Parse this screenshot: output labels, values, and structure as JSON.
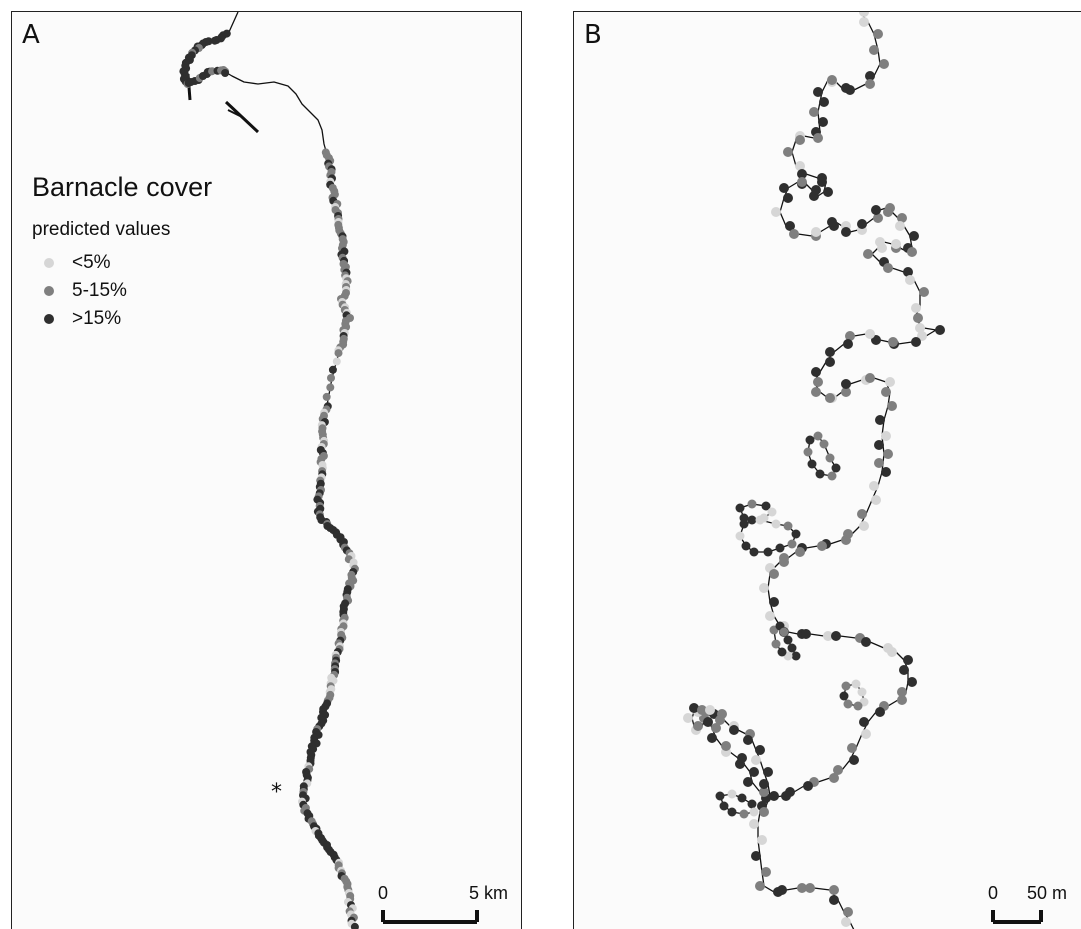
{
  "panels": {
    "a": {
      "letter": "A"
    },
    "b": {
      "letter": "B"
    }
  },
  "legend": {
    "title": "Barnacle cover",
    "subtitle": "predicted values",
    "classes": [
      {
        "label": "<5%",
        "color": "#d6d6d6"
      },
      {
        "label": "5-15%",
        "color": "#7f7f7f"
      },
      {
        "label": ">15%",
        "color": "#2f2f2f"
      }
    ]
  },
  "scale_a": {
    "start": "0",
    "end": "5 km"
  },
  "scale_b": {
    "start": "0",
    "end": "50 m"
  },
  "site_marker": "*",
  "colors": {
    "background": "#fbfbfb",
    "coastline": "#111111"
  }
}
